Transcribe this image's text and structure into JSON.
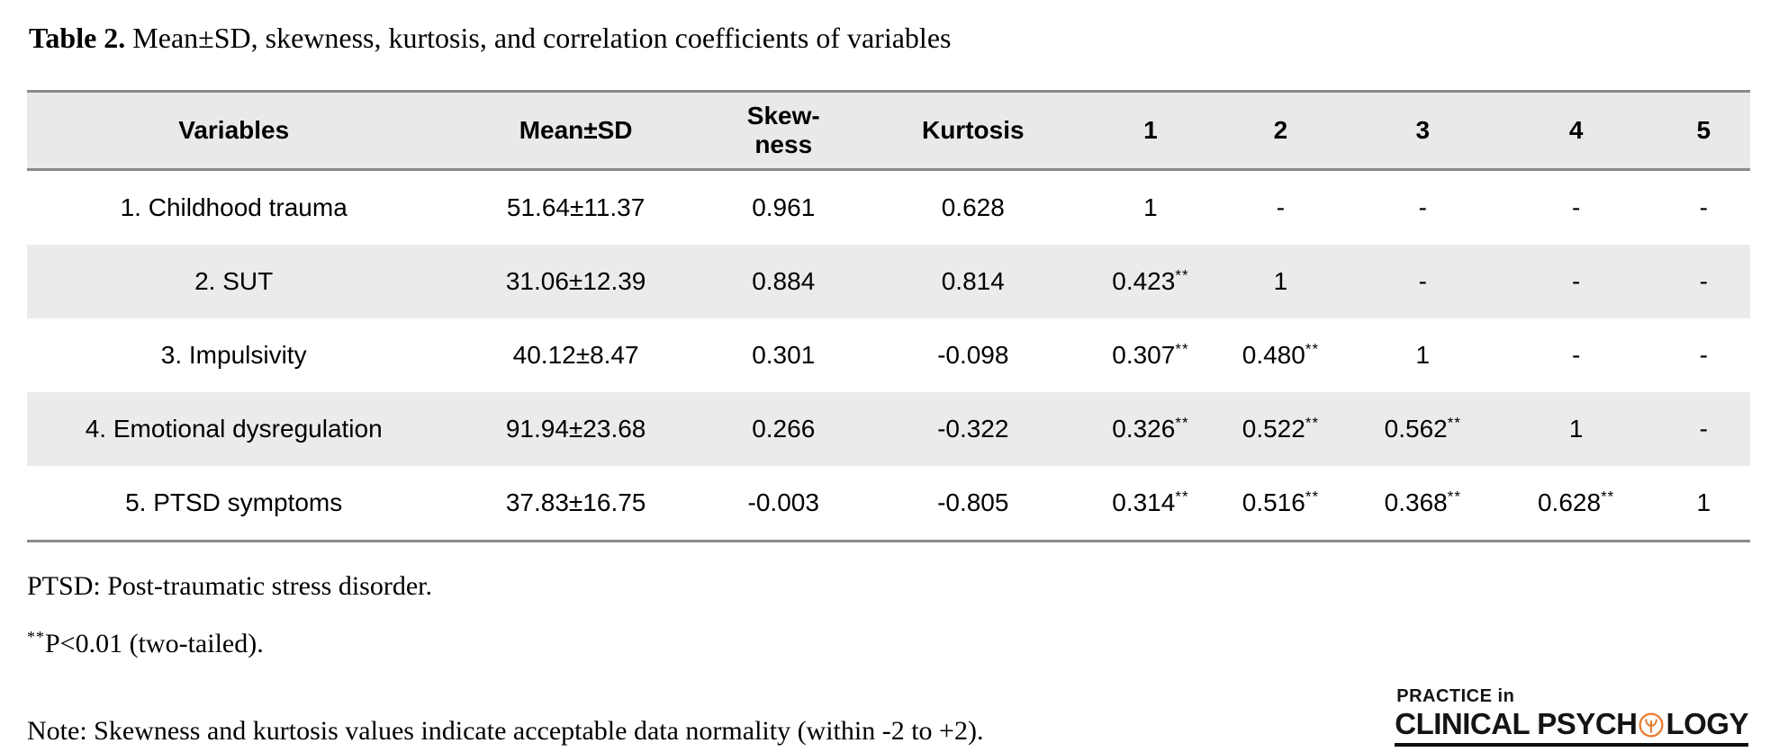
{
  "colors": {
    "header_bg": "#e9e9e9",
    "stripe_bg": "#ebebeb",
    "rule_gray": "#8a8a8a",
    "logo_accent": "#e87a2e",
    "text": "#000000"
  },
  "caption": {
    "label": "Table 2.",
    "text": "Mean±SD, skewness, kurtosis, and correlation coefficients of variables"
  },
  "table": {
    "headers": [
      "Variables",
      "Mean±SD",
      "Skew-\nness",
      "Kurtosis",
      "1",
      "2",
      "3",
      "4",
      "5"
    ],
    "rows": [
      [
        "1. Childhood trauma",
        "51.64±11.37",
        "0.961",
        "0.628",
        "1",
        "-",
        "-",
        "-",
        "-"
      ],
      [
        "2. SUT",
        "31.06±12.39",
        "0.884",
        "0.814",
        "0.423**",
        "1",
        "-",
        "-",
        "-"
      ],
      [
        "3. Impulsivity",
        "40.12±8.47",
        "0.301",
        "-0.098",
        "0.307**",
        "0.480**",
        "1",
        "-",
        "-"
      ],
      [
        "4. Emotional dysregulation",
        "91.94±23.68",
        "0.266",
        "-0.322",
        "0.326**",
        "0.522**",
        "0.562**",
        "1",
        "-"
      ],
      [
        "5. PTSD symptoms",
        "37.83±16.75",
        "-0.003",
        "-0.805",
        "0.314**",
        "0.516**",
        "0.368**",
        "0.628**",
        "1"
      ]
    ]
  },
  "footnotes": {
    "abbreviation": "PTSD: Post-traumatic stress disorder.",
    "pvalue_sup": "**",
    "pvalue_text": "P<0.01 (two-tailed).",
    "note": "Note: Skewness and kurtosis values indicate acceptable data normality (within -2 to +2)."
  },
  "logo": {
    "line1": "PRACTICE in",
    "line2_left": "CLINICAL PSYCH",
    "line2_right": "LOGY"
  }
}
